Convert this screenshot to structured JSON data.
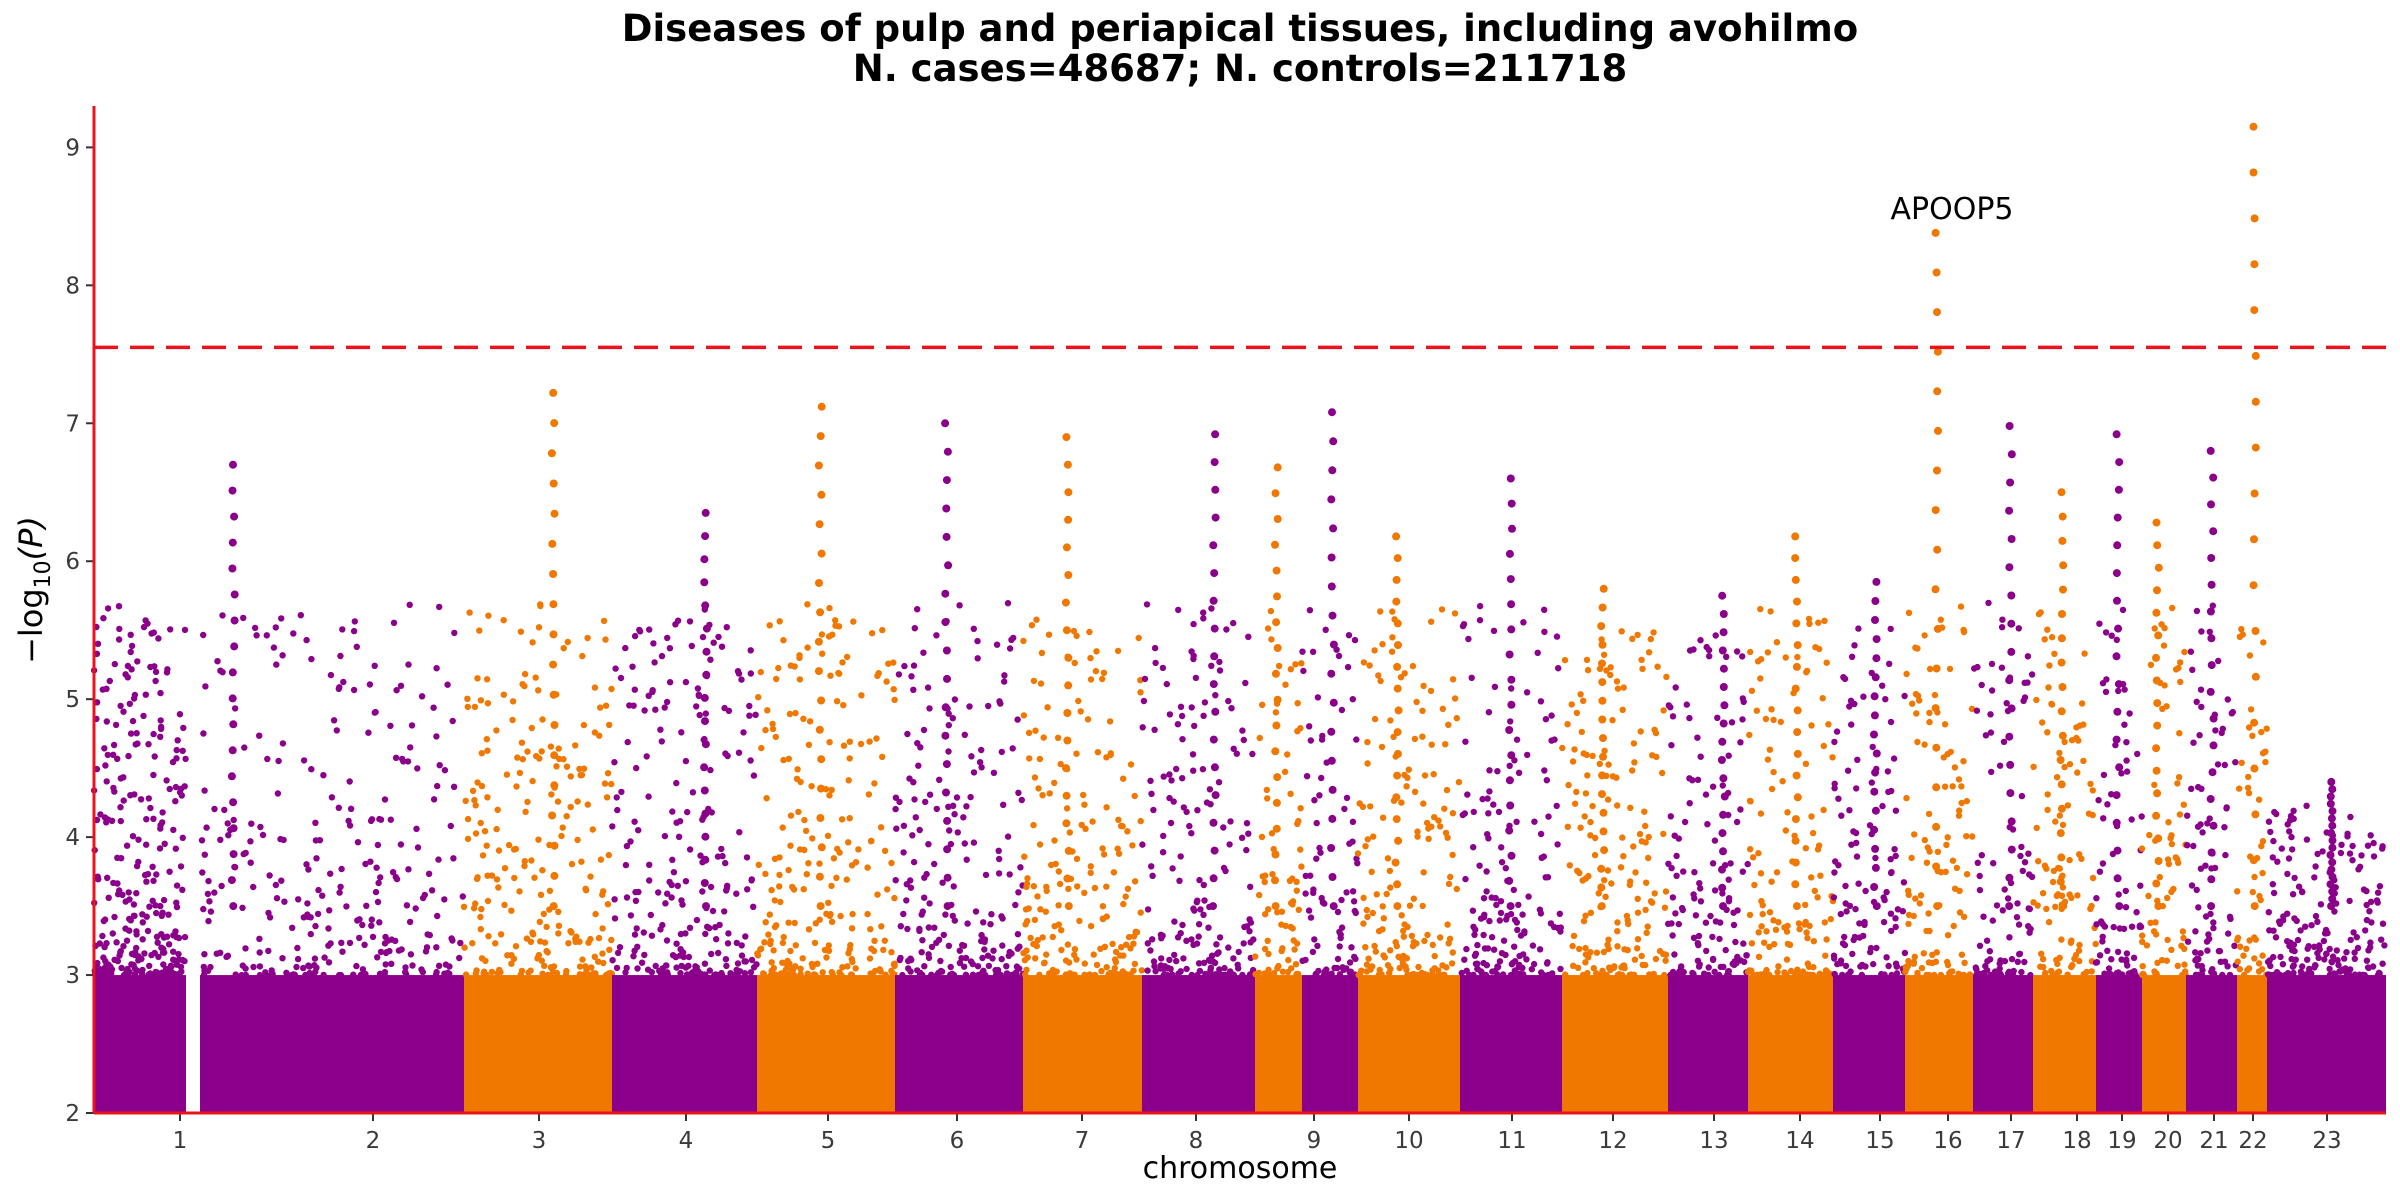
{
  "chart_data": {
    "type": "scatter",
    "title_line1": "Diseases of pulp and periapical tissues, including avohilmo",
    "title_line2": "N. cases=48687; N. controls=211718",
    "xlabel": "chromosome",
    "ylabel": "−log",
    "ylabel_sub": "10",
    "ylabel_tail": "(P)",
    "ylim": [
      2,
      9.3
    ],
    "yticks": [
      "2",
      "3",
      "4",
      "5",
      "6",
      "7",
      "8",
      "9"
    ],
    "significance_line": 7.55,
    "colors": {
      "odd": "#8b008b",
      "even": "#f07800",
      "axis": "#e8141c",
      "threshold": "#e8141c"
    },
    "chromosomes": [
      "1",
      "2",
      "3",
      "4",
      "5",
      "6",
      "7",
      "8",
      "9",
      "10",
      "11",
      "12",
      "13",
      "14",
      "15",
      "16",
      "17",
      "18",
      "19",
      "20",
      "21",
      "22",
      "23"
    ],
    "peaks": [
      6.7,
      7.22,
      6.35,
      7.12,
      7.0,
      6.9,
      6.92,
      6.68,
      7.08,
      6.18,
      6.6,
      5.8,
      5.75,
      6.18,
      5.85,
      8.38,
      6.98,
      6.5,
      6.92,
      6.28,
      6.8,
      9.15,
      4.4
    ],
    "annotation": {
      "label": "APOOP5",
      "chromosome": "16",
      "value": 8.38
    },
    "top_hit_chr22": {
      "chromosome": "22",
      "value": 9.15
    }
  }
}
